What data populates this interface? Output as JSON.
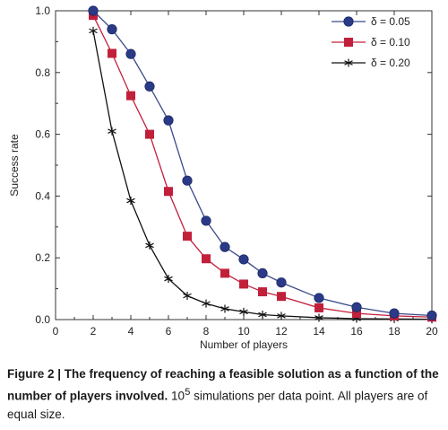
{
  "chart_data": {
    "type": "line",
    "xlabel": "Number of players",
    "ylabel": "Success rate",
    "xlim": [
      0,
      20
    ],
    "ylim": [
      0,
      1.0
    ],
    "x_ticks": [
      "0",
      "2",
      "4",
      "6",
      "8",
      "10",
      "12",
      "14",
      "16",
      "18",
      "20"
    ],
    "y_ticks": [
      "0.0",
      "0.2",
      "0.4",
      "0.6",
      "0.8",
      "1.0"
    ],
    "x": [
      2,
      3,
      4,
      5,
      6,
      7,
      8,
      9,
      10,
      11,
      12,
      14,
      16,
      18,
      20
    ],
    "legend_position": "top-right",
    "grid": false,
    "series": [
      {
        "name": "δ = 0.05",
        "marker": "circle",
        "line_color": "#3a4a8c",
        "marker_color": "#2b3a86",
        "values": [
          1.0,
          0.94,
          0.86,
          0.755,
          0.645,
          0.45,
          0.32,
          0.235,
          0.195,
          0.15,
          0.12,
          0.07,
          0.04,
          0.02,
          0.013
        ]
      },
      {
        "name": "δ = 0.10",
        "marker": "square",
        "line_color": "#c21f3a",
        "marker_color": "#c21f3a",
        "values": [
          0.985,
          0.862,
          0.725,
          0.6,
          0.415,
          0.27,
          0.197,
          0.15,
          0.115,
          0.09,
          0.075,
          0.038,
          0.02,
          0.012,
          0.008
        ]
      },
      {
        "name": "δ = 0.20",
        "marker": "star",
        "line_color": "#111111",
        "marker_color": "#111111",
        "values": [
          0.935,
          0.61,
          0.385,
          0.24,
          0.132,
          0.077,
          0.052,
          0.035,
          0.025,
          0.016,
          0.012,
          0.006,
          0.003,
          0.002,
          0.001
        ]
      }
    ]
  },
  "caption": {
    "bold": "Figure 2 | The frequency of reaching a feasible solution as a function of the number of players involved.",
    "text_before_exp": " 10",
    "exponent": "5",
    "text_after_exp": " simulations per data point. All players are of equal size."
  }
}
